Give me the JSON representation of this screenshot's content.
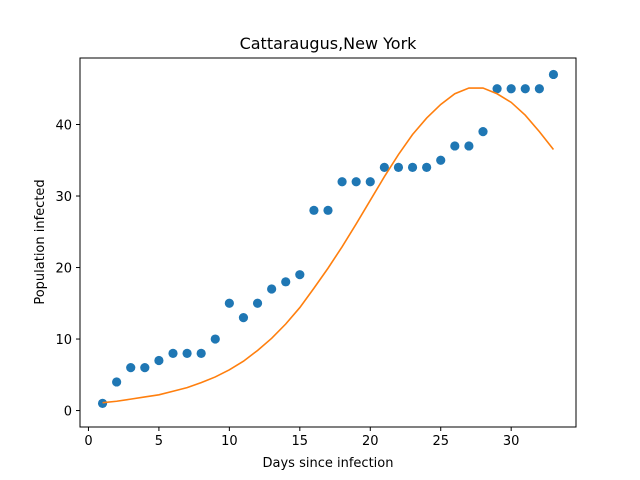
{
  "chart_data": {
    "type": "scatter",
    "title": "Cattaraugus,New York",
    "xlabel": "Days since infection",
    "ylabel": "Population infected",
    "xlim": [
      -0.6,
      34.6
    ],
    "ylim": [
      -2.3,
      49.3
    ],
    "x_ticks": [
      0,
      5,
      10,
      15,
      20,
      25,
      30
    ],
    "y_ticks": [
      0,
      10,
      20,
      30,
      40
    ],
    "grid": false,
    "series": [
      {
        "type": "scatter",
        "color": "#1f77b4",
        "x": [
          1,
          2,
          3,
          4,
          5,
          6,
          7,
          8,
          9,
          10,
          11,
          12,
          13,
          14,
          15,
          16,
          17,
          18,
          19,
          20,
          21,
          22,
          23,
          24,
          25,
          26,
          27,
          28,
          29,
          30,
          31,
          32,
          33
        ],
        "y": [
          1,
          4,
          6,
          6,
          7,
          8,
          8,
          8,
          10,
          15,
          13,
          15,
          17,
          18,
          19,
          28,
          28,
          32,
          32,
          32,
          34,
          34,
          34,
          34,
          35,
          37,
          37,
          39,
          45,
          45,
          45,
          45,
          47
        ]
      },
      {
        "type": "line",
        "color": "#ff7f0e",
        "x": [
          1,
          2,
          3,
          4,
          5,
          6,
          7,
          8,
          9,
          10,
          11,
          12,
          13,
          14,
          15,
          16,
          17,
          18,
          19,
          20,
          21,
          22,
          23,
          24,
          25,
          26,
          27,
          28,
          29,
          30,
          31,
          32,
          33
        ],
        "y": [
          1.1,
          1.3,
          1.6,
          1.9,
          2.2,
          2.7,
          3.2,
          3.9,
          4.7,
          5.7,
          6.9,
          8.4,
          10.1,
          12.1,
          14.4,
          17.1,
          19.9,
          22.9,
          26.1,
          29.4,
          32.7,
          35.8,
          38.6,
          40.9,
          42.8,
          44.3,
          45.1,
          45.1,
          44.3,
          43.1,
          41.3,
          39.0,
          36.5
        ]
      }
    ]
  }
}
